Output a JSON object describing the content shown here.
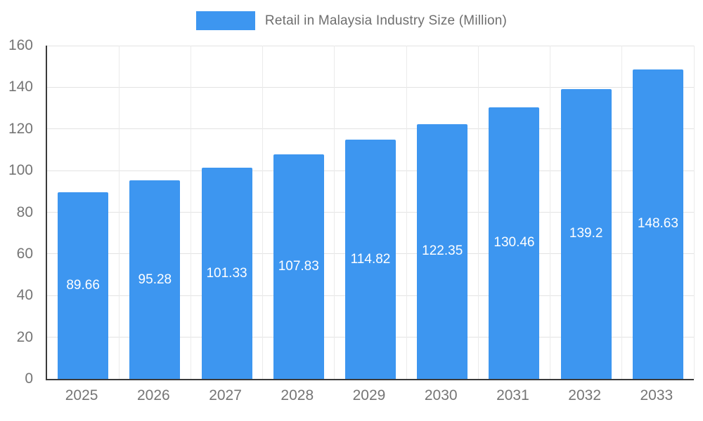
{
  "chart_data": {
    "type": "bar",
    "title": "Retail in Malaysia Industry Size (Million)",
    "categories": [
      "2025",
      "2026",
      "2027",
      "2028",
      "2029",
      "2030",
      "2031",
      "2032",
      "2033"
    ],
    "values": [
      89.66,
      95.28,
      101.33,
      107.83,
      114.82,
      122.35,
      130.46,
      139.2,
      148.63
    ],
    "value_labels": [
      "89.66",
      "95.28",
      "101.33",
      "107.83",
      "114.82",
      "122.35",
      "130.46",
      "139.2",
      "148.63"
    ],
    "ylim": [
      0,
      160
    ],
    "yticks": [
      0,
      20,
      40,
      60,
      80,
      100,
      120,
      140,
      160
    ],
    "grid": true,
    "legend_position": "top",
    "colors": {
      "bar": "#3d96f0",
      "bar_value_text": "#ffffff",
      "axis_line": "#3a3a3a",
      "grid_line": "#e3e3e3",
      "tick_text": "#757575",
      "legend_text": "#6e6e6e",
      "background": "#ffffff"
    }
  }
}
